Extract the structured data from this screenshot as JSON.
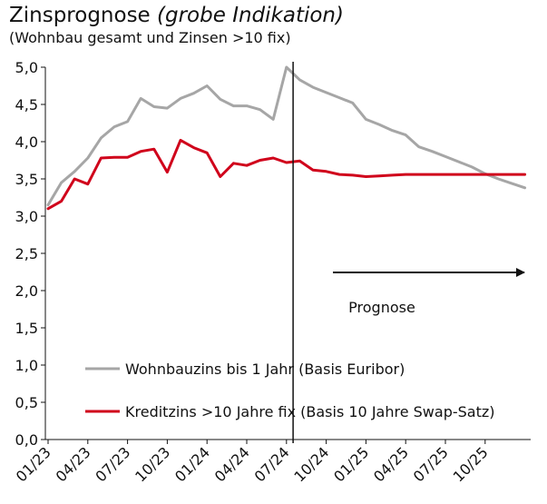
{
  "chart_data": {
    "type": "line",
    "title": "Zinsprognose",
    "title_italic": "(grobe Indikation)",
    "subtitle": "(Wohnbau gesamt und Zinsen >10 fix)",
    "x_tick_labels": [
      "01/23",
      "04/23",
      "07/23",
      "10/23",
      "01/24",
      "04/24",
      "07/24",
      "10/24",
      "01/25",
      "04/25",
      "07/25",
      "10/25"
    ],
    "y_tick_labels": [
      "0,0",
      "0,5",
      "1,0",
      "1,5",
      "2,0",
      "2,5",
      "3,0",
      "3,5",
      "4,0",
      "4,5",
      "5,0"
    ],
    "ylim": [
      0,
      5.0
    ],
    "y_step": 0.5,
    "forecast_start": "08/24",
    "forecast_label": "Prognose",
    "grid": false,
    "legend_position": "bottom-left",
    "series": [
      {
        "name": "Wohnbauzins bis 1 Jahr (Basis Euribor)",
        "color": "#a6a6a6",
        "points": [
          [
            "01/23",
            3.15
          ],
          [
            "02/23",
            3.45
          ],
          [
            "03/23",
            3.6
          ],
          [
            "04/23",
            3.78
          ],
          [
            "05/23",
            4.05
          ],
          [
            "06/23",
            4.2
          ],
          [
            "07/23",
            4.27
          ],
          [
            "08/23",
            4.58
          ],
          [
            "09/23",
            4.47
          ],
          [
            "10/23",
            4.45
          ],
          [
            "11/23",
            4.58
          ],
          [
            "12/23",
            4.65
          ],
          [
            "01/24",
            4.75
          ],
          [
            "02/24",
            4.57
          ],
          [
            "03/24",
            4.48
          ],
          [
            "04/24",
            4.48
          ],
          [
            "05/24",
            4.43
          ],
          [
            "06/24",
            4.3
          ],
          [
            "07/24",
            5.0
          ],
          [
            "08/24",
            4.83
          ],
          [
            "09/24",
            4.73
          ],
          [
            "10/24",
            4.66
          ],
          [
            "11/24",
            4.59
          ],
          [
            "12/24",
            4.52
          ],
          [
            "01/25",
            4.3
          ],
          [
            "02/25",
            4.23
          ],
          [
            "03/25",
            4.15
          ],
          [
            "04/25",
            4.09
          ],
          [
            "05/25",
            3.93
          ],
          [
            "06/25",
            3.87
          ],
          [
            "07/25",
            3.8
          ],
          [
            "08/25",
            3.73
          ],
          [
            "09/25",
            3.66
          ],
          [
            "10/25",
            3.57
          ],
          [
            "11/25",
            3.5
          ],
          [
            "12/25",
            3.44
          ],
          [
            "01/26",
            3.38
          ]
        ]
      },
      {
        "name": "Kreditzins >10 Jahre fix (Basis 10 Jahre Swap-Satz)",
        "color": "#d0021b",
        "points": [
          [
            "01/23",
            3.1
          ],
          [
            "02/23",
            3.2
          ],
          [
            "03/23",
            3.5
          ],
          [
            "04/23",
            3.43
          ],
          [
            "05/23",
            3.78
          ],
          [
            "06/23",
            3.79
          ],
          [
            "07/23",
            3.79
          ],
          [
            "08/23",
            3.87
          ],
          [
            "09/23",
            3.9
          ],
          [
            "10/23",
            3.59
          ],
          [
            "11/23",
            4.02
          ],
          [
            "12/23",
            3.92
          ],
          [
            "01/24",
            3.85
          ],
          [
            "02/24",
            3.53
          ],
          [
            "03/24",
            3.71
          ],
          [
            "04/24",
            3.68
          ],
          [
            "05/24",
            3.75
          ],
          [
            "06/24",
            3.78
          ],
          [
            "07/24",
            3.72
          ],
          [
            "08/24",
            3.74
          ],
          [
            "09/24",
            3.62
          ],
          [
            "10/24",
            3.6
          ],
          [
            "11/24",
            3.56
          ],
          [
            "12/24",
            3.55
          ],
          [
            "01/25",
            3.53
          ],
          [
            "02/25",
            3.54
          ],
          [
            "03/25",
            3.55
          ],
          [
            "04/25",
            3.56
          ],
          [
            "05/25",
            3.56
          ],
          [
            "06/25",
            3.56
          ],
          [
            "07/25",
            3.56
          ],
          [
            "08/25",
            3.56
          ],
          [
            "09/25",
            3.56
          ],
          [
            "10/25",
            3.56
          ],
          [
            "11/25",
            3.56
          ],
          [
            "12/25",
            3.56
          ],
          [
            "01/26",
            3.56
          ]
        ]
      }
    ]
  }
}
